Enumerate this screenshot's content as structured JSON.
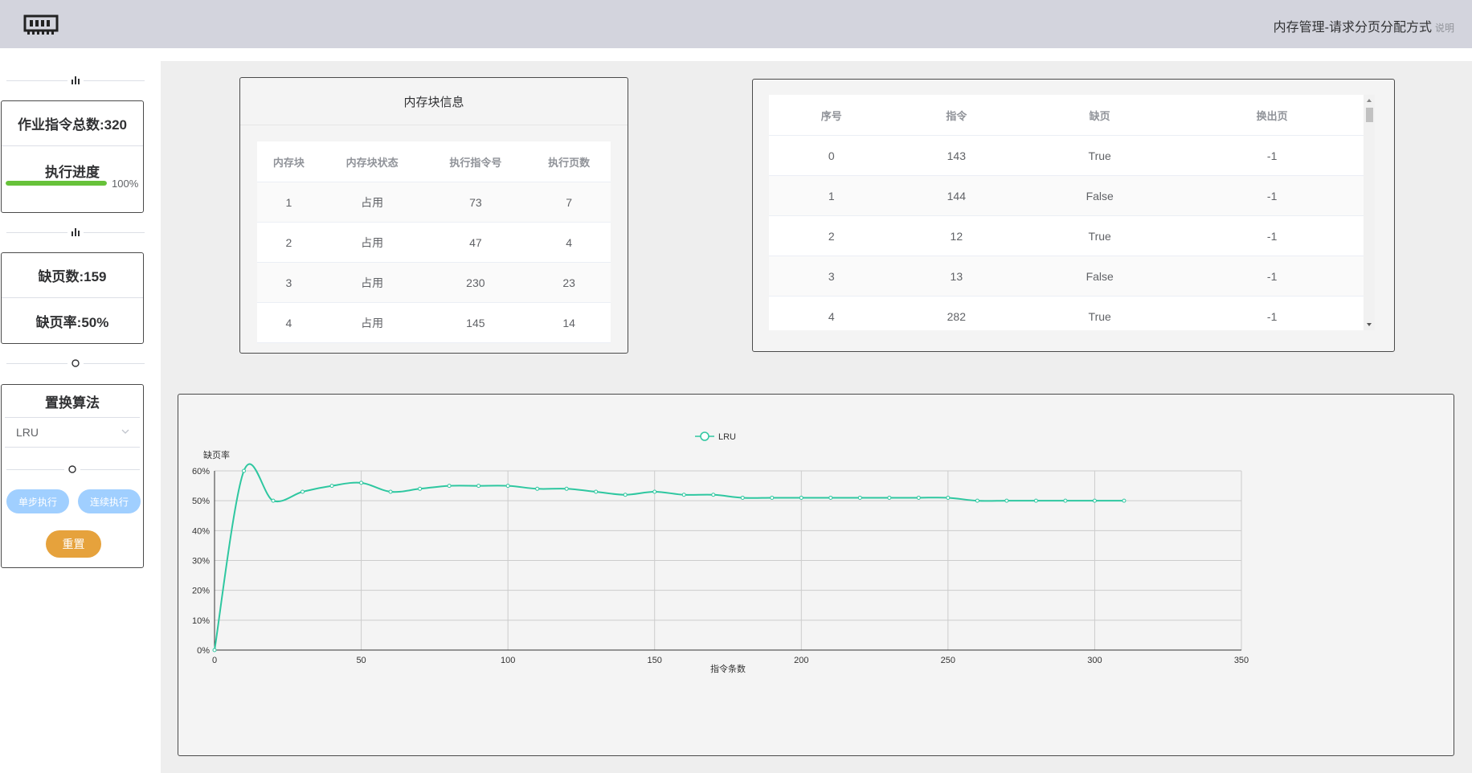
{
  "header": {
    "title": "内存管理-请求分页分配方式",
    "help": "说明"
  },
  "sidebar": {
    "total_label": "作业指令总数:320",
    "progress_label": "执行进度",
    "progress": {
      "percent": 100,
      "text": "100%"
    },
    "faults_label": "缺页数:159",
    "rate_label": "缺页率:50%",
    "algo_title": "置换算法",
    "algo_selected": "LRU",
    "step_btn": "单步执行",
    "run_btn": "连续执行",
    "reset_btn": "重置"
  },
  "block_panel": {
    "title": "内存块信息",
    "headers": [
      "内存块",
      "内存块状态",
      "执行指令号",
      "执行页数"
    ],
    "rows": [
      [
        "1",
        "占用",
        "73",
        "7"
      ],
      [
        "2",
        "占用",
        "47",
        "4"
      ],
      [
        "3",
        "占用",
        "230",
        "23"
      ],
      [
        "4",
        "占用",
        "145",
        "14"
      ]
    ]
  },
  "log_panel": {
    "headers": [
      "序号",
      "指令",
      "缺页",
      "换出页"
    ],
    "rows": [
      [
        "0",
        "143",
        "True",
        "-1"
      ],
      [
        "1",
        "144",
        "False",
        "-1"
      ],
      [
        "2",
        "12",
        "True",
        "-1"
      ],
      [
        "3",
        "13",
        "False",
        "-1"
      ],
      [
        "4",
        "282",
        "True",
        "-1"
      ]
    ]
  },
  "chart_data": {
    "type": "line",
    "title": "",
    "xlabel": "指令条数",
    "ylabel": "缺页率",
    "xlim": [
      0,
      350
    ],
    "ylim": [
      0,
      60
    ],
    "x_ticks": [
      "0",
      "50",
      "100",
      "150",
      "200",
      "250",
      "300",
      "350"
    ],
    "y_ticks": [
      "0%",
      "10%",
      "20%",
      "30%",
      "40%",
      "50%",
      "60%"
    ],
    "legend": "top-center",
    "grid": true,
    "series": [
      {
        "name": "LRU",
        "color": "#2ec7a0",
        "x": [
          0,
          10,
          20,
          30,
          40,
          50,
          60,
          70,
          80,
          90,
          100,
          110,
          120,
          130,
          140,
          150,
          160,
          170,
          180,
          190,
          200,
          210,
          220,
          230,
          240,
          250,
          260,
          270,
          280,
          290,
          300,
          310
        ],
        "values": [
          0,
          60,
          50,
          53,
          55,
          56,
          53,
          54,
          55,
          55,
          55,
          54,
          54,
          53,
          52,
          53,
          52,
          52,
          51,
          51,
          51,
          51,
          51,
          51,
          51,
          51,
          50,
          50,
          50,
          50,
          50,
          50
        ]
      }
    ]
  }
}
